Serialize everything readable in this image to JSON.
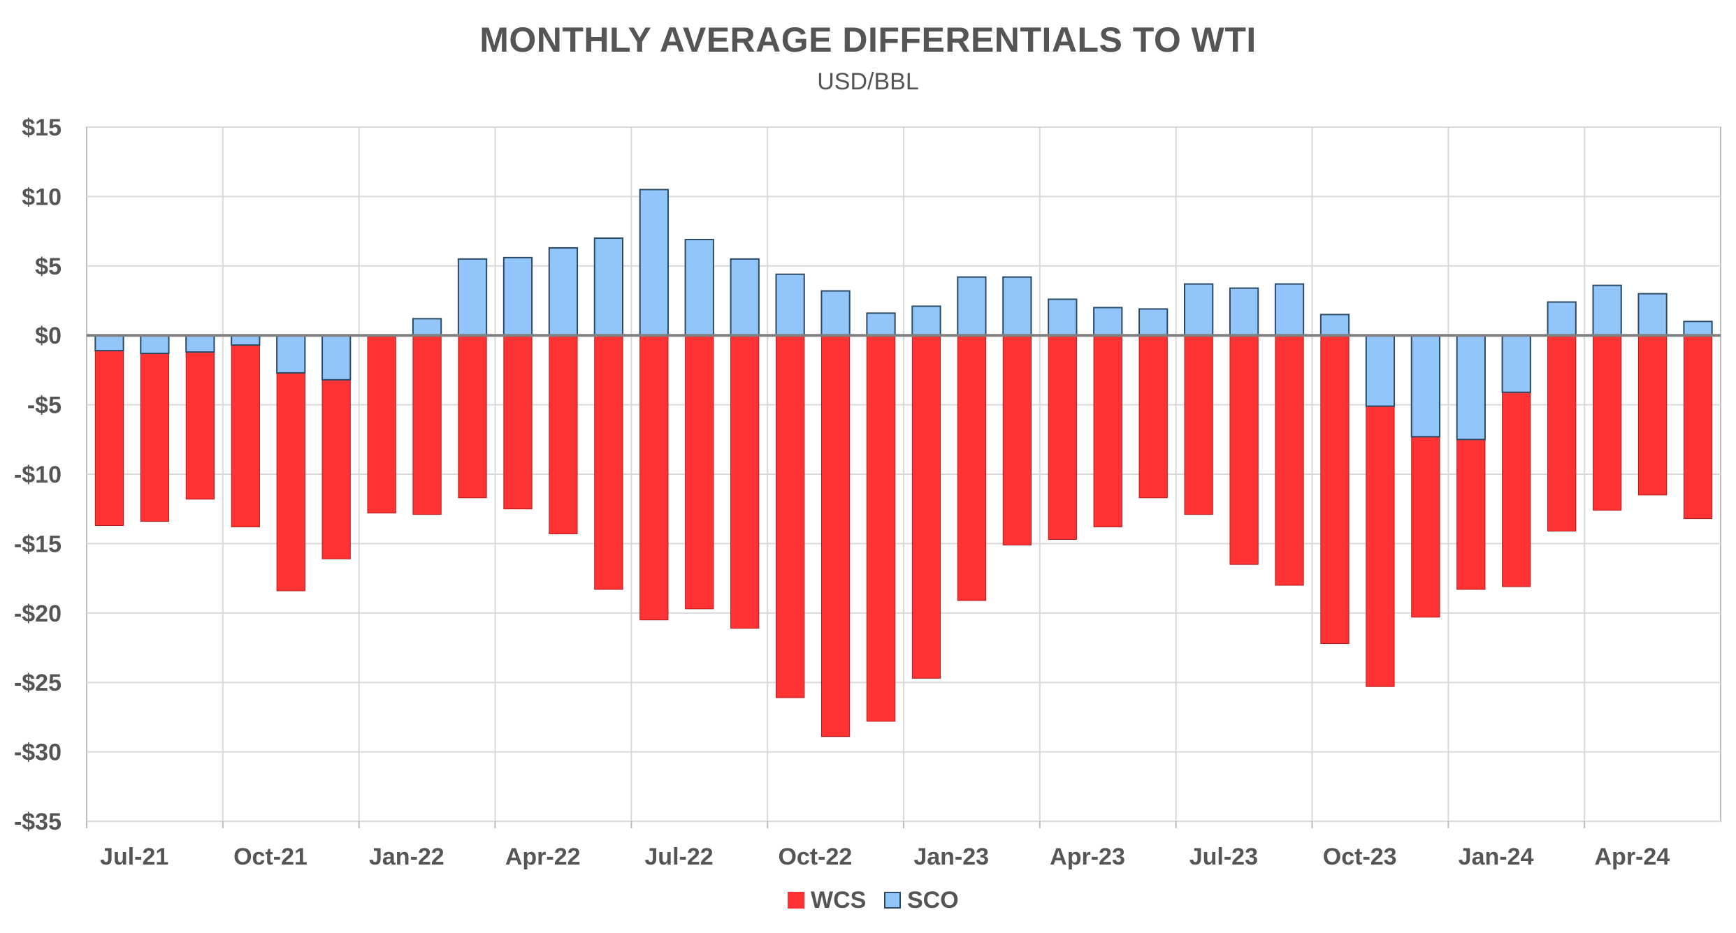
{
  "chart_data": {
    "type": "bar",
    "title": "MONTHLY AVERAGE DIFFERENTIALS TO WTI",
    "subtitle": "USD/BBL",
    "xlabel": "",
    "ylabel": "",
    "ylim": [
      -35,
      15
    ],
    "yticks": [
      15,
      10,
      5,
      0,
      -5,
      -10,
      -15,
      -20,
      -25,
      -30,
      -35
    ],
    "ytick_labels": [
      "$15",
      "$10",
      "$5",
      "$0",
      "-$5",
      "-$10",
      "-$15",
      "-$20",
      "-$25",
      "-$30",
      "-$35"
    ],
    "categories": [
      "Jul-21",
      "Aug-21",
      "Sep-21",
      "Oct-21",
      "Nov-21",
      "Dec-21",
      "Jan-22",
      "Feb-22",
      "Mar-22",
      "Apr-22",
      "May-22",
      "Jun-22",
      "Jul-22",
      "Aug-22",
      "Sep-22",
      "Oct-22",
      "Nov-22",
      "Dec-22",
      "Jan-23",
      "Feb-23",
      "Mar-23",
      "Apr-23",
      "May-23",
      "Jun-23",
      "Jul-23",
      "Aug-23",
      "Sep-23",
      "Oct-23",
      "Nov-23",
      "Dec-23",
      "Jan-24",
      "Feb-24",
      "Mar-24",
      "Apr-24",
      "May-24",
      "Jun-24"
    ],
    "xtick_labels": [
      {
        "index": 0,
        "label": "Jul-21"
      },
      {
        "index": 3,
        "label": "Oct-21"
      },
      {
        "index": 6,
        "label": "Jan-22"
      },
      {
        "index": 9,
        "label": "Apr-22"
      },
      {
        "index": 12,
        "label": "Jul-22"
      },
      {
        "index": 15,
        "label": "Oct-22"
      },
      {
        "index": 18,
        "label": "Jan-23"
      },
      {
        "index": 21,
        "label": "Apr-23"
      },
      {
        "index": 24,
        "label": "Jul-23"
      },
      {
        "index": 27,
        "label": "Oct-23"
      },
      {
        "index": 30,
        "label": "Jan-24"
      },
      {
        "index": 33,
        "label": "Apr-24"
      }
    ],
    "series": [
      {
        "name": "WCS",
        "color": "#ff3333",
        "values": [
          -13.7,
          -13.4,
          -11.8,
          -13.8,
          -18.4,
          -16.1,
          -12.8,
          -12.9,
          -11.7,
          -12.5,
          -14.3,
          -18.3,
          -20.5,
          -19.7,
          -21.1,
          -26.1,
          -28.9,
          -27.8,
          -24.7,
          -19.1,
          -15.1,
          -14.7,
          -13.8,
          -11.7,
          -12.9,
          -16.5,
          -18.0,
          -22.2,
          -25.3,
          -20.3,
          -18.3,
          -18.1,
          -14.1,
          -12.6,
          -11.5,
          -13.2
        ]
      },
      {
        "name": "SCO",
        "color": "#92c5f9",
        "values": [
          -1.1,
          -1.3,
          -1.2,
          -0.7,
          -2.7,
          -3.2,
          0.0,
          1.2,
          5.5,
          5.6,
          6.3,
          7.0,
          10.5,
          6.9,
          5.5,
          4.4,
          3.2,
          1.6,
          2.1,
          4.2,
          4.2,
          2.6,
          2.0,
          1.9,
          3.7,
          3.4,
          3.7,
          1.5,
          -5.1,
          -7.3,
          -7.5,
          -4.1,
          2.4,
          3.6,
          3.0,
          1.0
        ]
      }
    ],
    "legend": {
      "position": "bottom-center",
      "entries": [
        "WCS",
        "SCO"
      ]
    },
    "grid": true,
    "colors": {
      "wcs": "#ff3333",
      "sco": "#92c5f9",
      "bar_stroke": "#2b4a66",
      "zero_line": "#808080",
      "grid": "#d9d9d9",
      "text": "#555555"
    }
  }
}
